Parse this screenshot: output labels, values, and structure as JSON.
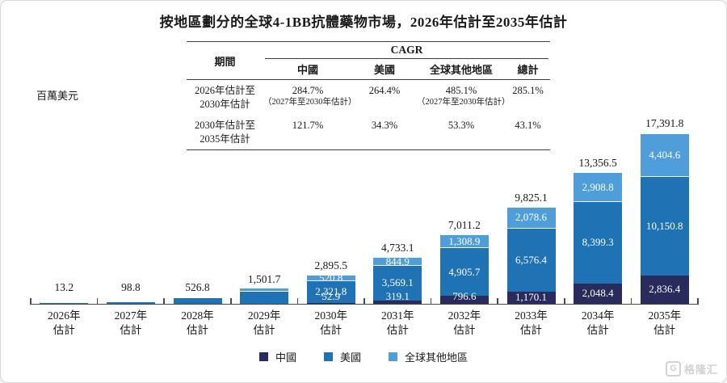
{
  "title": "按地區劃分的全球4-1BB抗體藥物市場，2026年估計至2035年估計",
  "y_axis_unit": "百萬美元",
  "cagr_table": {
    "period_header": "期間",
    "cagr_header": "CAGR",
    "columns": [
      "中國",
      "美國",
      "全球其他地區",
      "總計"
    ],
    "rows": [
      {
        "period_line1": "2026年估計至",
        "period_line2": "2030年估計",
        "china": "284.7%",
        "china_note": "（2027年至2030年估計）",
        "us": "264.4%",
        "other": "485.1%",
        "other_note": "（2027年至2030年估計）",
        "total": "285.1%"
      },
      {
        "period_line1": "2030年估計至",
        "period_line2": "2035年估計",
        "china": "121.7%",
        "china_note": "",
        "us": "34.3%",
        "other": "53.3%",
        "other_note": "",
        "total": "43.1%"
      }
    ]
  },
  "chart_data": {
    "type": "bar",
    "stacked": true,
    "title": "按地區劃分的全球4-1BB抗體藥物市場，2026年估計至2035年估計",
    "ylabel": "百萬美元",
    "ylim": [
      0,
      17391.8
    ],
    "grid": false,
    "legend_position": "bottom",
    "category_years": [
      "2026年",
      "2027年",
      "2028年",
      "2029年",
      "2030年",
      "2031年",
      "2032年",
      "2033年",
      "2034年",
      "2035年"
    ],
    "category_suffix": "估計",
    "totals": [
      13.2,
      98.8,
      526.8,
      1501.7,
      2895.5,
      4733.1,
      7011.2,
      9825.1,
      13356.5,
      17391.8
    ],
    "series": [
      {
        "name": "中國",
        "color": "#282b5c",
        "values": [
          null,
          null,
          null,
          null,
          52.9,
          319.1,
          796.6,
          1170.1,
          2048.4,
          2836.4
        ]
      },
      {
        "name": "美國",
        "color": "#1f72b4",
        "values": [
          null,
          null,
          null,
          null,
          2321.8,
          3569.1,
          4905.7,
          6576.4,
          8399.3,
          10150.8
        ]
      },
      {
        "name": "全球其他地區",
        "color": "#4f9ed9",
        "values": [
          null,
          null,
          null,
          null,
          520.8,
          844.9,
          1308.9,
          2078.6,
          2908.8,
          4404.6
        ]
      }
    ],
    "segment_labels_start_index": 4,
    "thin_top_cap_indices": [
      3
    ]
  },
  "watermark": {
    "logo": "G",
    "text": "格隆汇"
  }
}
